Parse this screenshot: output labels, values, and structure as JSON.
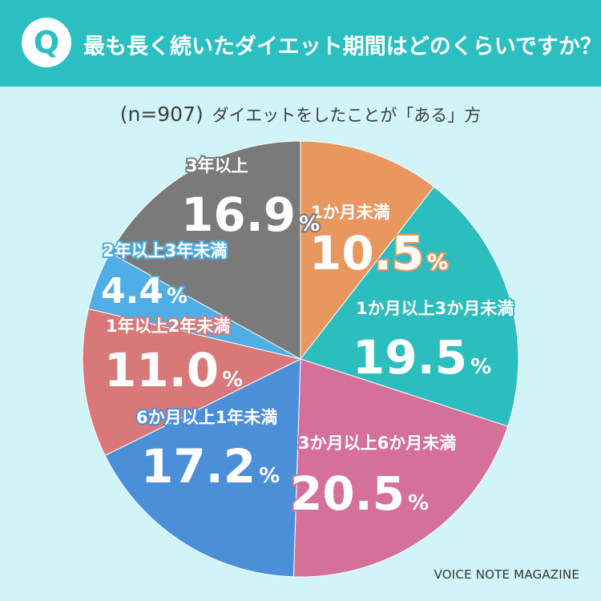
{
  "header": {
    "q_mark": "Q",
    "question": "最も長く続いたダイエット期間はどのくらいですか？",
    "accent_color": "#2bbfc2"
  },
  "subtitle": {
    "sample": "(n=907)",
    "text": "ダイエットをしたことが「ある」方"
  },
  "source": "VOICE NOTE MAGAZINE",
  "chart_data": {
    "type": "pie",
    "title": "最も長く続いたダイエット期間はどのくらいですか？",
    "start_angle": "12 o'clock",
    "direction": "clockwise",
    "percent_sign": "%",
    "slices": [
      {
        "label": "1か月未満",
        "value": 10.5,
        "display": "10.5",
        "color": "#e8985e"
      },
      {
        "label": "1か月以上3か月未満",
        "value": 19.5,
        "display": "19.5",
        "color": "#2cbdbf"
      },
      {
        "label": "3か月以上6か月未満",
        "value": 20.5,
        "display": "20.5",
        "color": "#d5709b"
      },
      {
        "label": "6か月以上1年未満",
        "value": 17.2,
        "display": "17.2",
        "color": "#4c8fd9"
      },
      {
        "label": "1年以上2年未満",
        "value": 11.0,
        "display": "11.0",
        "color": "#d97878"
      },
      {
        "label": "2年以上3年未満",
        "value": 4.4,
        "display": "4.4",
        "color": "#4eaee5"
      },
      {
        "label": "3年以上",
        "value": 16.9,
        "display": "16.9",
        "color": "#7a7a7a"
      }
    ]
  }
}
